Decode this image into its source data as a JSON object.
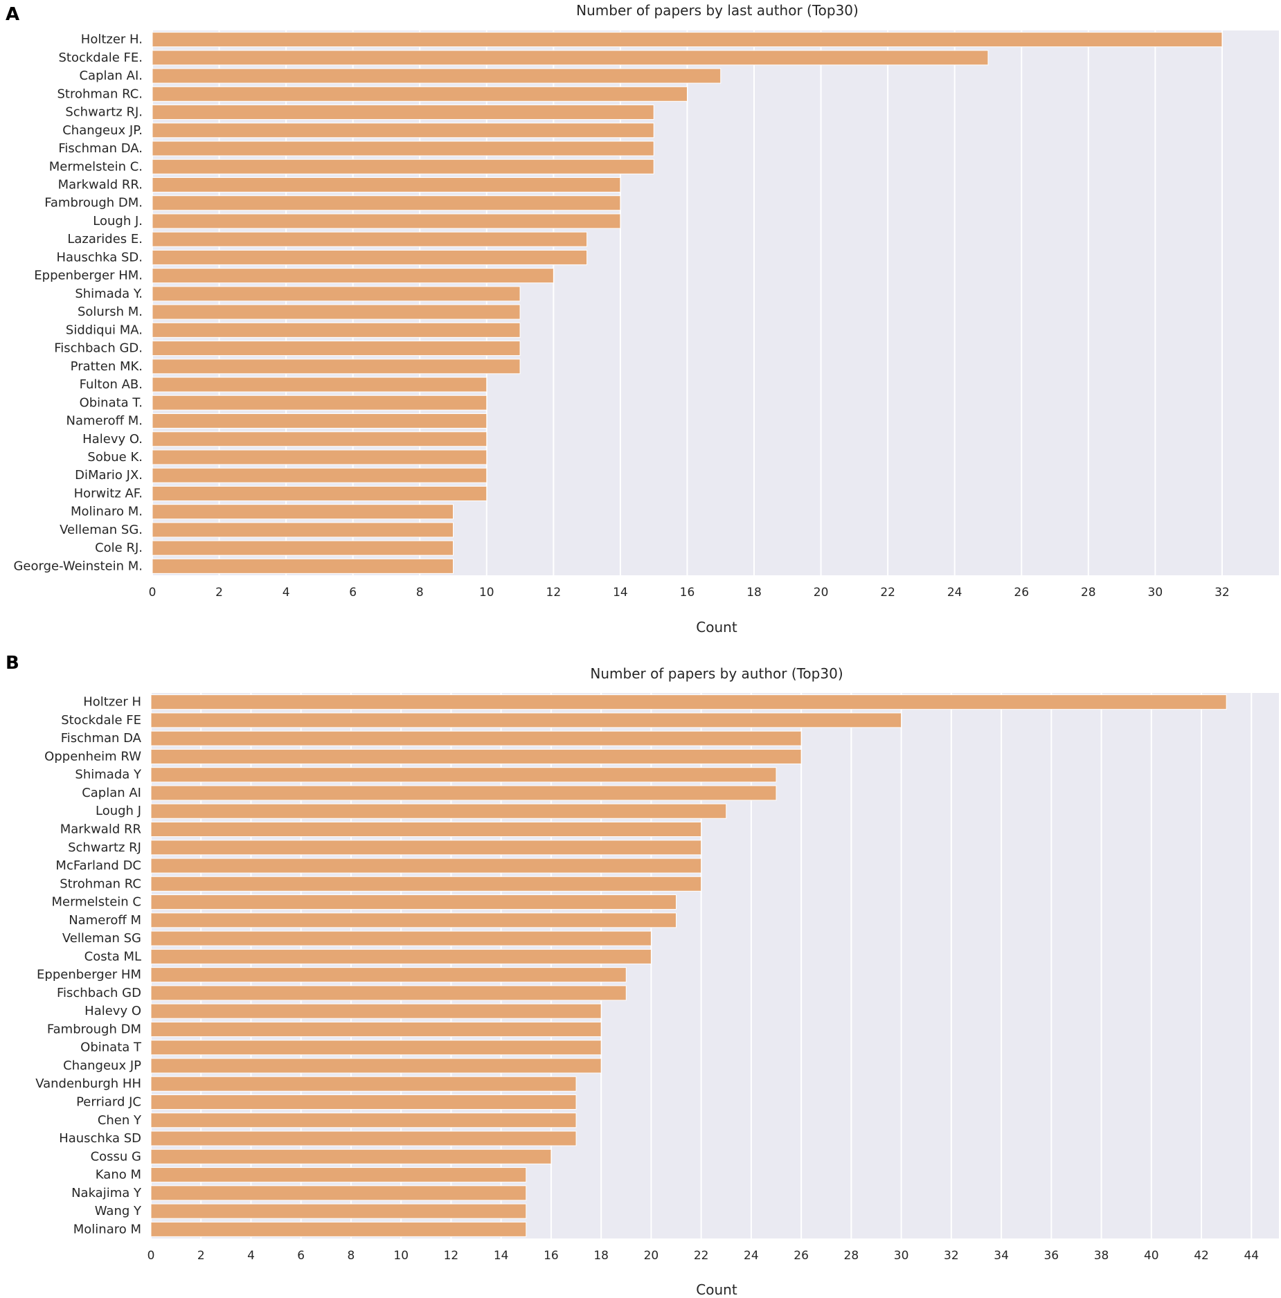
{
  "figure": {
    "background_color": "#ffffff",
    "plot_background_color": "#eaeaf2",
    "grid_color": "#ffffff",
    "bar_color": "#e5a774",
    "text_color": "#262626"
  },
  "chart_data": [
    {
      "panel": "A",
      "type": "bar",
      "orientation": "horizontal",
      "title": "Number of papers by last author (Top30)",
      "xlabel": "Count",
      "ylabel": "",
      "xlim": [
        0,
        33.7
      ],
      "xticks": [
        0,
        2,
        4,
        6,
        8,
        10,
        12,
        14,
        16,
        18,
        20,
        22,
        24,
        26,
        28,
        30,
        32
      ],
      "grid": true,
      "categories": [
        "Holtzer H.",
        "Stockdale FE.",
        "Caplan AI.",
        "Strohman RC.",
        "Schwartz RJ.",
        "Changeux JP.",
        "Fischman DA.",
        "Mermelstein C.",
        "Markwald RR.",
        "Fambrough DM.",
        "Lough J.",
        "Lazarides E.",
        "Hauschka SD.",
        "Eppenberger HM.",
        "Shimada Y.",
        "Solursh M.",
        "Siddiqui MA.",
        "Fischbach GD.",
        "Pratten MK.",
        "Fulton AB.",
        "Obinata T.",
        "Nameroff M.",
        "Halevy O.",
        "Sobue K.",
        "DiMario JX.",
        "Horwitz AF.",
        "Molinaro M.",
        "Velleman SG.",
        "Cole RJ.",
        "George-Weinstein M."
      ],
      "values": [
        32,
        25,
        17,
        16,
        15,
        15,
        15,
        15,
        14,
        14,
        14,
        13,
        13,
        12,
        11,
        11,
        11,
        11,
        11,
        10,
        10,
        10,
        10,
        10,
        10,
        10,
        9,
        9,
        9,
        9
      ]
    },
    {
      "panel": "B",
      "type": "bar",
      "orientation": "horizontal",
      "title": "Number of papers by author (Top30)",
      "xlabel": "Count",
      "ylabel": "",
      "xlim": [
        0,
        45.1
      ],
      "xticks": [
        0,
        2,
        4,
        6,
        8,
        10,
        12,
        14,
        16,
        18,
        20,
        22,
        24,
        26,
        28,
        30,
        32,
        34,
        36,
        38,
        40,
        42,
        44
      ],
      "grid": true,
      "categories": [
        "Holtzer H",
        "Stockdale FE",
        "Fischman DA",
        "Oppenheim RW",
        "Shimada Y",
        "Caplan AI",
        "Lough J",
        "Markwald RR",
        "Schwartz RJ",
        "McFarland DC",
        "Strohman RC",
        "Mermelstein C",
        "Nameroff M",
        "Velleman SG",
        "Costa ML",
        "Eppenberger HM",
        "Fischbach GD",
        "Halevy O",
        "Fambrough DM",
        "Obinata T",
        "Changeux JP",
        "Vandenburgh HH",
        "Perriard JC",
        "Chen Y",
        "Hauschka SD",
        "Cossu G",
        "Kano M",
        "Nakajima Y",
        "Wang Y",
        "Molinaro M"
      ],
      "values": [
        43,
        30,
        26,
        26,
        25,
        25,
        23,
        22,
        22,
        22,
        22,
        21,
        21,
        20,
        20,
        19,
        19,
        18,
        18,
        18,
        18,
        17,
        17,
        17,
        17,
        16,
        15,
        15,
        15,
        15
      ]
    }
  ]
}
